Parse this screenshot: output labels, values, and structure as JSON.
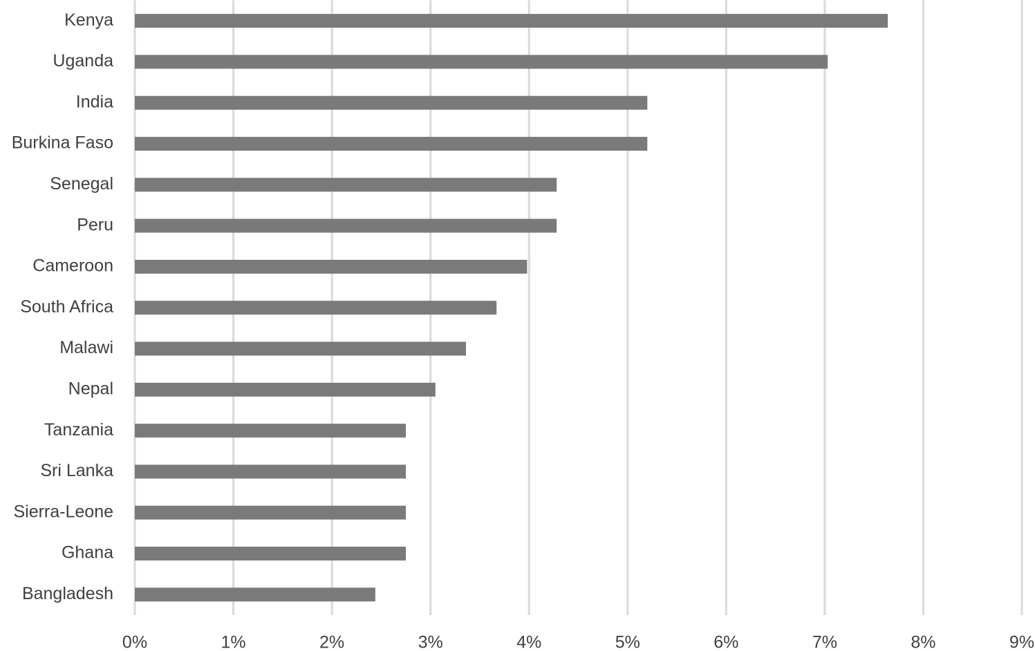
{
  "chart_data": {
    "type": "hbar",
    "categories": [
      "Kenya",
      "Uganda",
      "India",
      "Burkina Faso",
      "Senegal",
      "Peru",
      "Cameroon",
      "South Africa",
      "Malawi",
      "Nepal",
      "Tanzania",
      "Sri Lanka",
      "Sierra-Leone",
      "Ghana",
      "Bangladesh"
    ],
    "values": [
      7.64,
      7.03,
      5.2,
      5.2,
      4.28,
      4.28,
      3.98,
      3.67,
      3.36,
      3.05,
      2.75,
      2.75,
      2.75,
      2.75,
      2.44
    ],
    "color": "#7a7a7a",
    "xlim": [
      0,
      9
    ],
    "xticks": [
      {
        "value": 0,
        "label": "0%"
      },
      {
        "value": 1,
        "label": "1%"
      },
      {
        "value": 2,
        "label": "2%"
      },
      {
        "value": 3,
        "label": "3%"
      },
      {
        "value": 4,
        "label": "4%"
      },
      {
        "value": 5,
        "label": "5%"
      },
      {
        "value": 6,
        "label": "6%"
      },
      {
        "value": 7,
        "label": "7%"
      },
      {
        "value": 8,
        "label": "8%"
      },
      {
        "value": 9,
        "label": "9%"
      }
    ],
    "grid": true
  }
}
